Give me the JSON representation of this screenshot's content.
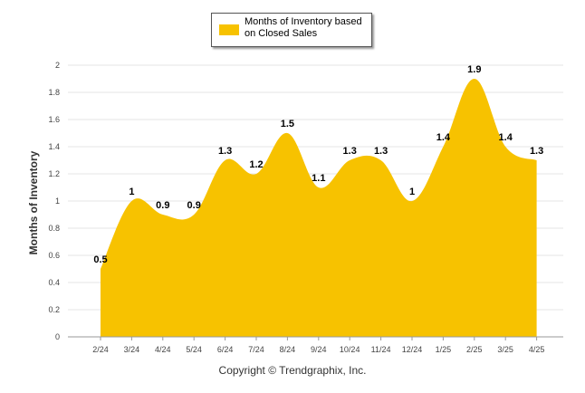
{
  "chart_data": {
    "type": "area",
    "categories": [
      "2/24",
      "3/24",
      "4/24",
      "5/24",
      "6/24",
      "7/24",
      "8/24",
      "9/24",
      "10/24",
      "11/24",
      "12/24",
      "1/25",
      "2/25",
      "3/25",
      "4/25"
    ],
    "series": [
      {
        "name": "Months of Inventory based on Closed Sales",
        "values": [
          0.5,
          1,
          0.9,
          0.9,
          1.3,
          1.2,
          1.5,
          1.1,
          1.3,
          1.3,
          1,
          1.4,
          1.9,
          1.4,
          1.3
        ]
      }
    ],
    "data_labels": [
      "0.5",
      "1",
      "0.9",
      "0.9",
      "1.3",
      "1.2",
      "1.5",
      "1.1",
      "1.3",
      "1.3",
      "1",
      "1.4",
      "1.9",
      "1.4",
      "1.3"
    ],
    "yticks": [
      "0",
      "0.2",
      "0.4",
      "0.6",
      "0.8",
      "1",
      "1.2",
      "1.4",
      "1.6",
      "1.8",
      "2"
    ],
    "ylim": [
      0,
      2
    ],
    "ylabel": "Months of Inventory",
    "xlabel": "",
    "grid": true,
    "legend_position": "top-center",
    "color": "#F7C200"
  },
  "footer": {
    "copyright": "Copyright © Trendgraphix, Inc."
  }
}
